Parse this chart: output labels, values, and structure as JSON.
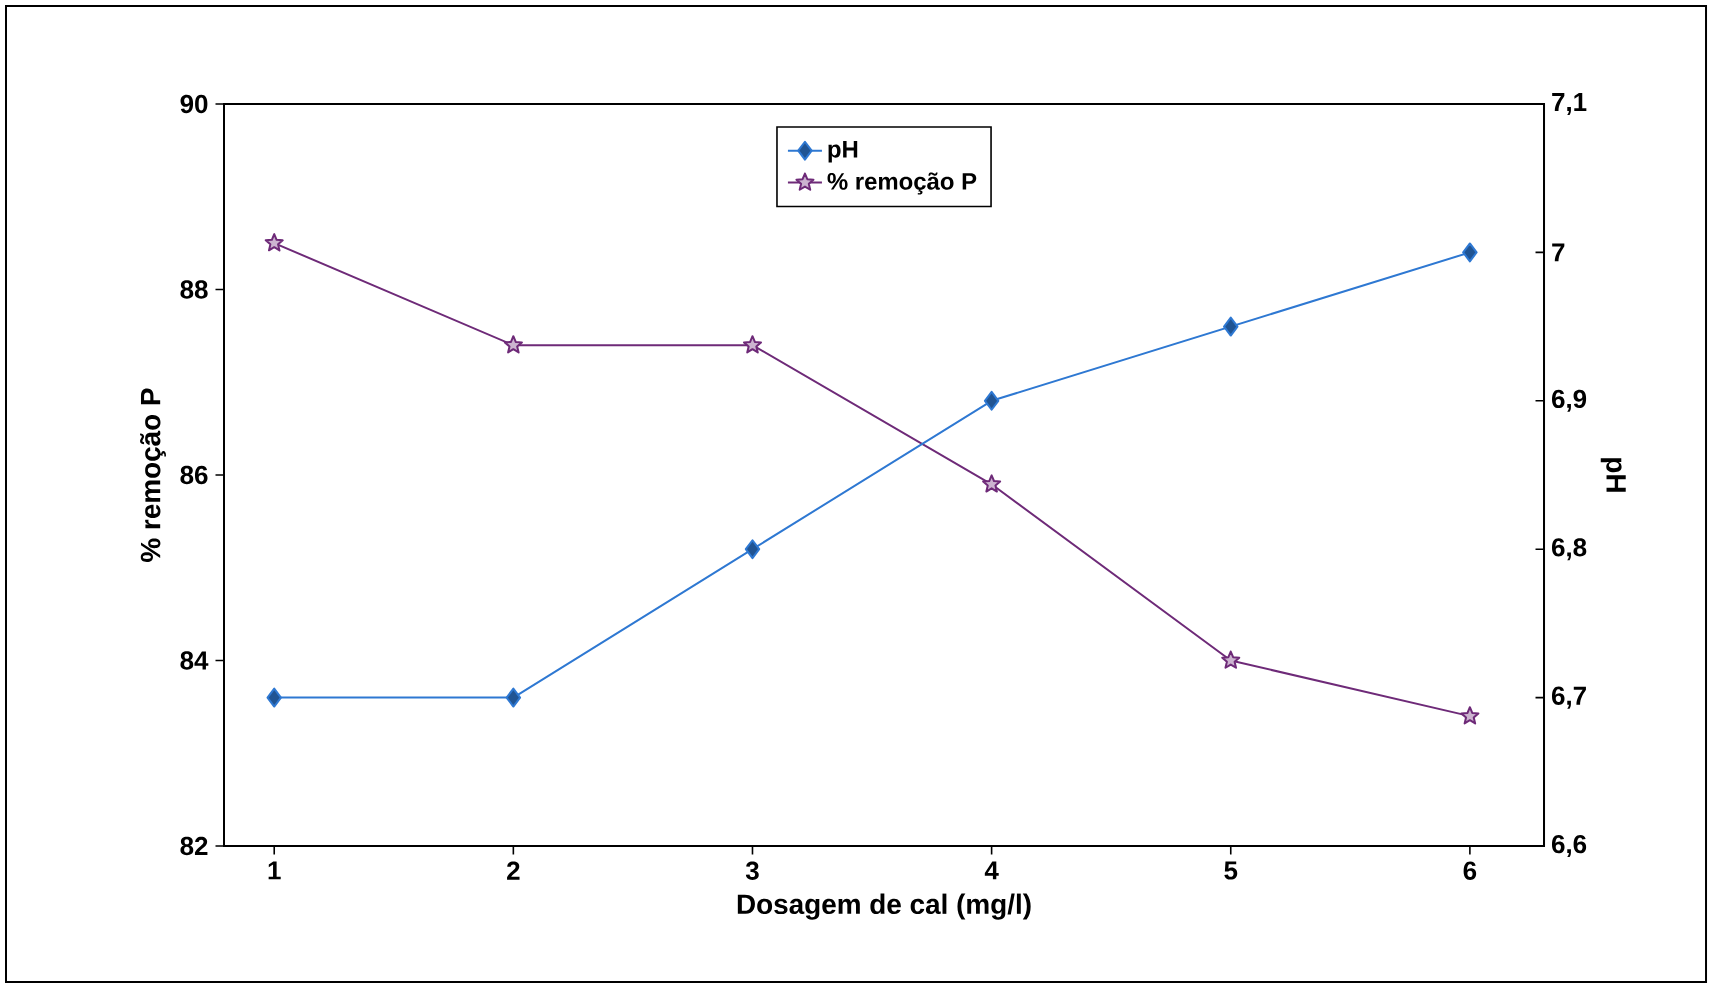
{
  "chart_data": {
    "type": "line",
    "xlabel": "Dosagem de cal (mg/l)",
    "ylabel": "% remoção P",
    "y2label": "pH",
    "categories": [
      "1",
      "2",
      "3",
      "4",
      "5",
      "6"
    ],
    "series": [
      {
        "name": "pH",
        "axis": "y2",
        "color": "#2e78d2",
        "marker": "diamond",
        "values": [
          6.7,
          6.7,
          6.8,
          6.9,
          6.95,
          7.0
        ]
      },
      {
        "name": "% remoção P",
        "color": "#6e2a78",
        "marker": "star",
        "values": [
          88.5,
          87.4,
          87.4,
          85.9,
          84.0,
          83.4
        ]
      }
    ],
    "ylim": [
      82,
      90
    ],
    "yticks": [
      82,
      84,
      86,
      88,
      90
    ],
    "y2lim": [
      6.6,
      7.1
    ],
    "y2ticks": [
      {
        "value": 6.6,
        "label": "6,6"
      },
      {
        "value": 6.7,
        "label": "6,7"
      },
      {
        "value": 6.8,
        "label": "6,8"
      },
      {
        "value": 6.9,
        "label": "6,9"
      },
      {
        "value": 7.0,
        "label": "7"
      },
      {
        "value": 7.1,
        "label": "7,1"
      }
    ],
    "legend": "top",
    "grid": false
  }
}
